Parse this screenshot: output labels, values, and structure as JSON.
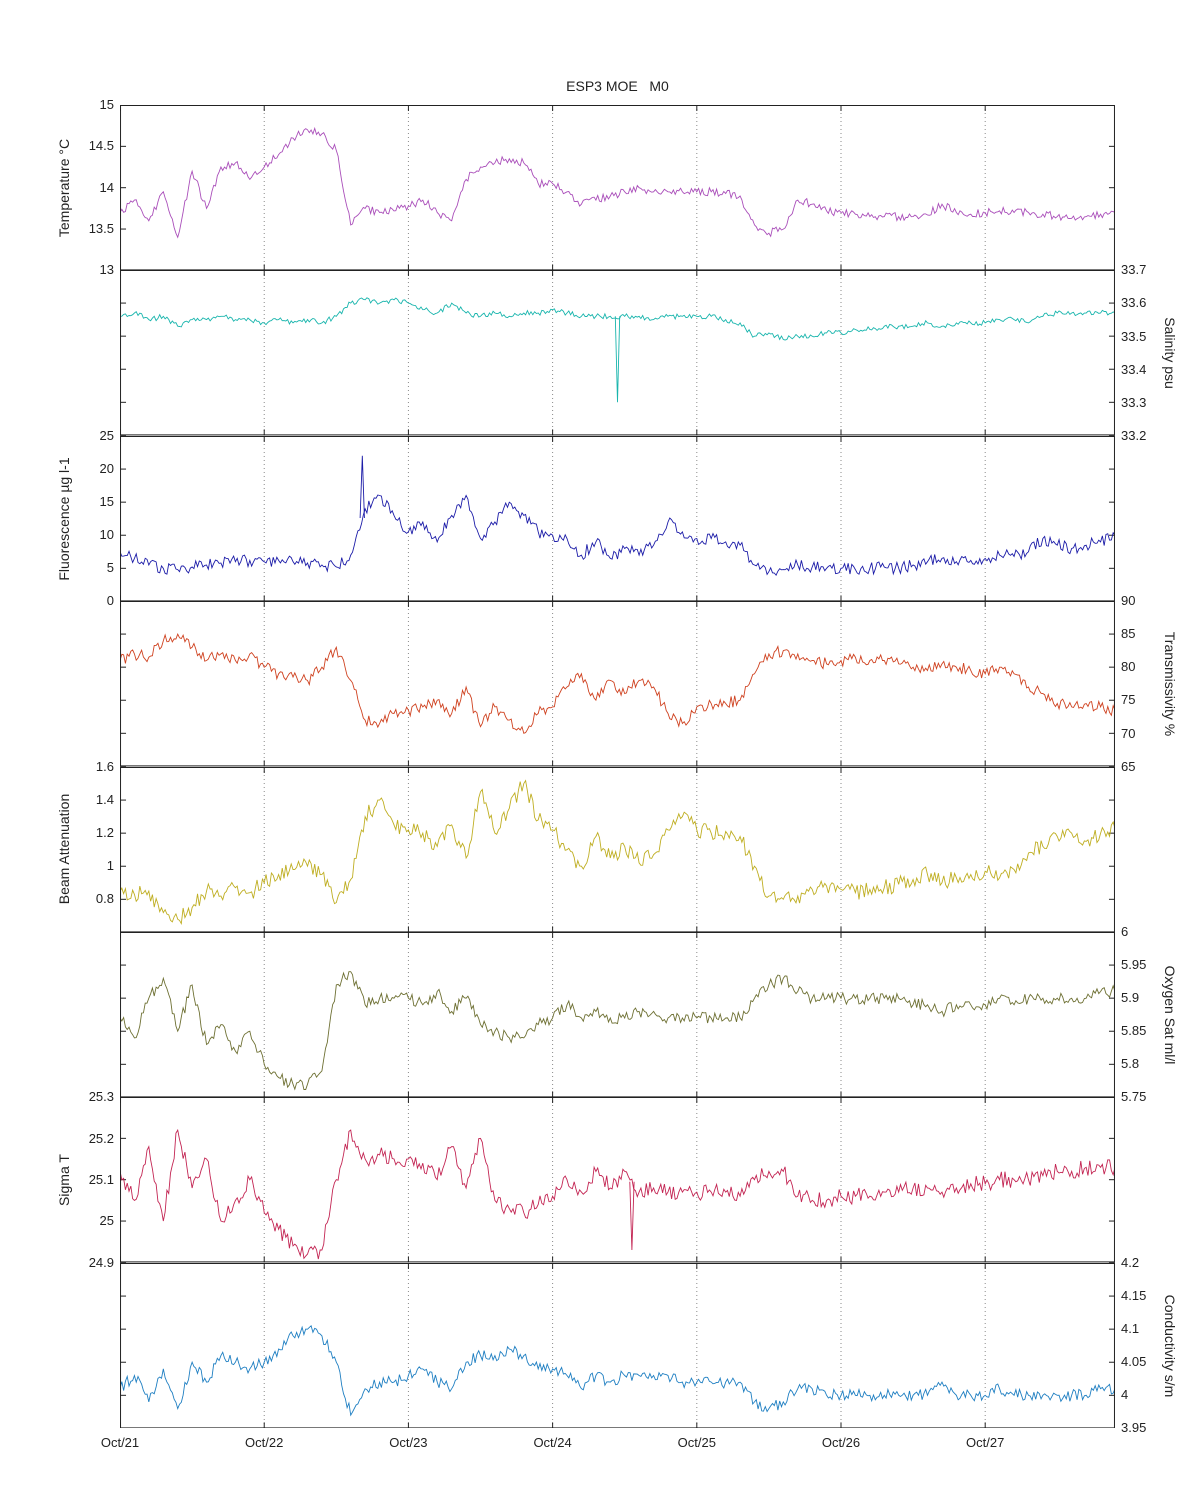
{
  "chart_data": {
    "type": "line",
    "title": "ESP3 MOE   M0",
    "x_range": [
      0,
      6.9
    ],
    "x_ticks": [
      0,
      1,
      2,
      3,
      4,
      5,
      6
    ],
    "x_tick_labels": [
      "Oct/21",
      "Oct/22",
      "Oct/23",
      "Oct/24",
      "Oct/25",
      "Oct/26",
      "Oct/27"
    ],
    "grid": "vertical-dotted",
    "legend": "none",
    "panels": [
      {
        "ylabel": "Temperature °C",
        "side": "left",
        "color": "#aa4fba",
        "ylim": [
          13,
          15
        ],
        "yticks": [
          13,
          13.5,
          14,
          14.5,
          15
        ],
        "noise": 0.05,
        "x_start": 0,
        "x_step": 0.1,
        "values": [
          13.7,
          13.85,
          13.6,
          13.95,
          13.4,
          14.2,
          13.75,
          14.25,
          14.3,
          14.1,
          14.25,
          14.4,
          14.6,
          14.7,
          14.65,
          14.45,
          13.55,
          13.75,
          13.7,
          13.72,
          13.78,
          13.85,
          13.7,
          13.6,
          14.1,
          14.25,
          14.3,
          14.35,
          14.3,
          14.05,
          14.05,
          13.95,
          13.8,
          13.85,
          13.9,
          13.95,
          14.0,
          13.95,
          13.95,
          13.95,
          13.95,
          13.95,
          13.93,
          13.9,
          13.55,
          13.45,
          13.5,
          13.85,
          13.8,
          13.72,
          13.7,
          13.68,
          13.65,
          13.65,
          13.65,
          13.65,
          13.67,
          13.8,
          13.7,
          13.68,
          13.7,
          13.72,
          13.7,
          13.7,
          13.68,
          13.65,
          13.63,
          13.65,
          13.68,
          13.7
        ]
      },
      {
        "ylabel": "Salinity psu",
        "side": "right",
        "color": "#19b5ad",
        "ylim": [
          33.2,
          33.7
        ],
        "yticks": [
          33.2,
          33.3,
          33.4,
          33.5,
          33.6,
          33.7
        ],
        "noise": 0.008,
        "x_start": 0,
        "x_step": 0.1,
        "values": [
          33.56,
          33.57,
          33.55,
          33.56,
          33.53,
          33.55,
          33.55,
          33.56,
          33.55,
          33.55,
          33.54,
          33.55,
          33.54,
          33.55,
          33.54,
          33.56,
          33.6,
          33.61,
          33.6,
          33.61,
          33.6,
          33.58,
          33.57,
          33.6,
          33.57,
          33.56,
          33.57,
          33.56,
          33.57,
          33.57,
          33.58,
          33.57,
          33.56,
          33.56,
          33.56,
          33.56,
          33.56,
          33.55,
          33.56,
          33.56,
          33.56,
          33.56,
          33.55,
          33.54,
          33.5,
          33.51,
          33.49,
          33.5,
          33.5,
          33.51,
          33.51,
          33.52,
          33.52,
          33.53,
          33.53,
          33.53,
          33.54,
          33.53,
          33.54,
          33.54,
          33.54,
          33.55,
          33.55,
          33.54,
          33.56,
          33.57,
          33.57,
          33.57,
          33.57,
          33.57
        ],
        "spikes": [
          [
            3.45,
            33.3
          ]
        ]
      },
      {
        "ylabel": "Fluorescence µg l-1",
        "side": "left",
        "color": "#1c1ca8",
        "ylim": [
          0,
          25
        ],
        "yticks": [
          0,
          5,
          10,
          15,
          20,
          25
        ],
        "noise": 0.9,
        "x_start": 0,
        "x_step": 0.1,
        "values": [
          7.5,
          6.5,
          5.5,
          5.0,
          4.8,
          5.2,
          5.5,
          5.8,
          6.0,
          6.2,
          6.0,
          6.2,
          6.0,
          5.8,
          5.5,
          5.2,
          7.0,
          14.0,
          16.0,
          13.0,
          10.5,
          12.0,
          9.0,
          13.0,
          16.0,
          9.5,
          12.0,
          15.0,
          13.0,
          10.5,
          10.0,
          9.5,
          7.0,
          9.0,
          6.5,
          8.0,
          7.0,
          8.5,
          12.0,
          10.5,
          9.5,
          9.5,
          9.0,
          8.5,
          5.5,
          4.5,
          4.8,
          5.5,
          5.2,
          5.0,
          5.0,
          4.8,
          5.0,
          5.2,
          5.0,
          5.5,
          6.0,
          6.5,
          6.0,
          6.2,
          6.5,
          7.0,
          6.8,
          7.5,
          9.5,
          8.5,
          8.0,
          8.5,
          9.0,
          10.0
        ],
        "spikes": [
          [
            1.68,
            22.0
          ]
        ]
      },
      {
        "ylabel": "Transmissivity %",
        "side": "right",
        "color": "#cf4220",
        "ylim": [
          65,
          90
        ],
        "yticks": [
          65,
          70,
          75,
          80,
          85,
          90
        ],
        "noise": 0.9,
        "x_start": 0,
        "x_step": 0.1,
        "values": [
          81,
          82,
          81.5,
          84,
          85,
          83,
          81,
          82,
          81,
          82,
          80,
          79,
          78.5,
          78,
          80,
          83,
          78,
          72,
          71.5,
          73,
          73.5,
          74,
          75,
          73,
          77,
          71,
          74,
          72,
          70,
          73,
          74,
          77,
          79,
          75,
          78,
          76,
          78,
          77,
          73,
          71.5,
          74,
          74.5,
          74.5,
          75,
          79,
          82,
          82.5,
          82,
          81,
          80.5,
          81,
          81.5,
          81,
          81,
          80.5,
          80,
          79.5,
          80.5,
          80,
          79.5,
          79,
          80,
          79,
          77,
          76,
          74.5,
          74,
          74.5,
          74,
          73.5
        ]
      },
      {
        "ylabel": "Beam Attenuation",
        "side": "left",
        "color": "#bfae22",
        "ylim": [
          0.6,
          1.6
        ],
        "yticks": [
          0.8,
          1,
          1.2,
          1.4,
          1.6
        ],
        "noise": 0.05,
        "x_start": 0,
        "x_step": 0.1,
        "values": [
          0.85,
          0.83,
          0.85,
          0.72,
          0.68,
          0.75,
          0.85,
          0.82,
          0.87,
          0.84,
          0.9,
          0.95,
          0.98,
          1.0,
          0.95,
          0.78,
          0.92,
          1.3,
          1.4,
          1.25,
          1.22,
          1.2,
          1.12,
          1.25,
          1.05,
          1.45,
          1.2,
          1.35,
          1.5,
          1.28,
          1.22,
          1.1,
          1.0,
          1.18,
          1.05,
          1.12,
          1.02,
          1.07,
          1.22,
          1.3,
          1.22,
          1.2,
          1.21,
          1.18,
          1.0,
          0.82,
          0.8,
          0.82,
          0.86,
          0.88,
          0.86,
          0.84,
          0.86,
          0.87,
          0.89,
          0.92,
          0.95,
          0.9,
          0.93,
          0.95,
          0.97,
          0.93,
          0.98,
          1.08,
          1.12,
          1.18,
          1.2,
          1.15,
          1.2,
          1.23
        ]
      },
      {
        "ylabel": "Oxygen Sat ml/l",
        "side": "right",
        "color": "#6e7033",
        "ylim": [
          5.75,
          6
        ],
        "yticks": [
          5.75,
          5.8,
          5.85,
          5.9,
          5.95,
          6
        ],
        "noise": 0.009,
        "x_start": 0,
        "x_step": 0.1,
        "values": [
          5.87,
          5.84,
          5.9,
          5.93,
          5.85,
          5.92,
          5.83,
          5.86,
          5.82,
          5.85,
          5.8,
          5.78,
          5.77,
          5.77,
          5.79,
          5.92,
          5.94,
          5.89,
          5.9,
          5.9,
          5.9,
          5.89,
          5.91,
          5.88,
          5.9,
          5.86,
          5.85,
          5.84,
          5.84,
          5.86,
          5.87,
          5.89,
          5.87,
          5.88,
          5.87,
          5.87,
          5.88,
          5.88,
          5.87,
          5.87,
          5.87,
          5.87,
          5.87,
          5.87,
          5.9,
          5.92,
          5.93,
          5.91,
          5.9,
          5.9,
          5.9,
          5.9,
          5.9,
          5.9,
          5.9,
          5.89,
          5.89,
          5.88,
          5.89,
          5.89,
          5.89,
          5.9,
          5.89,
          5.9,
          5.9,
          5.9,
          5.9,
          5.9,
          5.91,
          5.91
        ]
      },
      {
        "ylabel": "Sigma T",
        "side": "left",
        "color": "#c32553",
        "ylim": [
          24.9,
          25.3
        ],
        "yticks": [
          24.9,
          25,
          25.1,
          25.2,
          25.3
        ],
        "noise": 0.02,
        "x_start": 0,
        "x_step": 0.1,
        "values": [
          25.12,
          25.05,
          25.18,
          25.0,
          25.22,
          25.08,
          25.15,
          25.0,
          25.05,
          25.1,
          25.02,
          24.98,
          24.94,
          24.92,
          24.93,
          25.1,
          25.22,
          25.15,
          25.16,
          25.15,
          25.15,
          25.14,
          25.1,
          25.18,
          25.08,
          25.2,
          25.05,
          25.03,
          25.02,
          25.04,
          25.06,
          25.1,
          25.07,
          25.12,
          25.08,
          25.12,
          25.07,
          25.08,
          25.07,
          25.07,
          25.07,
          25.07,
          25.07,
          25.06,
          25.1,
          25.12,
          25.12,
          25.06,
          25.05,
          25.05,
          25.06,
          25.06,
          25.06,
          25.07,
          25.07,
          25.08,
          25.08,
          25.07,
          25.08,
          25.09,
          25.09,
          25.1,
          25.1,
          25.1,
          25.11,
          25.12,
          25.12,
          25.13,
          25.13,
          25.13
        ],
        "spikes": [
          [
            3.55,
            24.93
          ]
        ]
      },
      {
        "ylabel": "Conductivity s/m",
        "side": "right",
        "color": "#1f7fc2",
        "ylim": [
          3.95,
          4.2
        ],
        "yticks": [
          3.95,
          4,
          4.05,
          4.1,
          4.15,
          4.2
        ],
        "noise": 0.009,
        "x_start": 0,
        "x_step": 0.1,
        "values": [
          4.01,
          4.03,
          3.99,
          4.04,
          3.98,
          4.05,
          4.02,
          4.06,
          4.05,
          4.04,
          4.05,
          4.07,
          4.09,
          4.1,
          4.09,
          4.05,
          3.97,
          4.01,
          4.02,
          4.02,
          4.03,
          4.04,
          4.02,
          4.01,
          4.05,
          4.06,
          4.06,
          4.07,
          4.06,
          4.04,
          4.04,
          4.03,
          4.01,
          4.03,
          4.02,
          4.03,
          4.03,
          4.03,
          4.03,
          4.02,
          4.02,
          4.02,
          4.02,
          4.02,
          3.99,
          3.98,
          3.99,
          4.01,
          4.01,
          4.0,
          4.0,
          4.0,
          4.0,
          4.0,
          4.0,
          4.0,
          4.0,
          4.02,
          4.0,
          4.0,
          4.0,
          4.01,
          4.0,
          4.0,
          4.0,
          4.0,
          4.0,
          4.0,
          4.01,
          4.01
        ]
      }
    ]
  }
}
